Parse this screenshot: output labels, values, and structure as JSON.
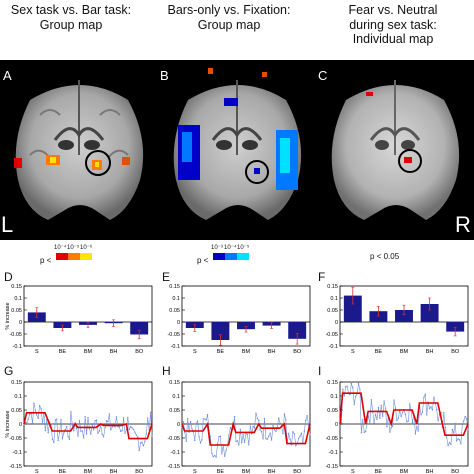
{
  "titles": [
    {
      "id": "A",
      "text1": "Sex task vs. Bar task:",
      "text2": "Group map"
    },
    {
      "id": "B",
      "text1": "Bars-only vs. Fixation:",
      "text2": "Group map"
    },
    {
      "id": "C",
      "text1": "Fear vs. Neutral",
      "text2": "during sex task:",
      "text3": "Individual map"
    }
  ],
  "brain_labels": {
    "A": "A",
    "B": "B",
    "C": "C",
    "left": "L",
    "right": "R"
  },
  "scales": {
    "A": {
      "p": "p <",
      "ticks": [
        "10⁻⁴",
        "10⁻⁵",
        "10⁻⁶"
      ],
      "colors": [
        "#e00000",
        "#ff7a00",
        "#ffe600"
      ]
    },
    "B": {
      "p": "p <",
      "ticks": [
        "10⁻³",
        "10⁻⁴",
        "10⁻⁵"
      ],
      "colors": [
        "#0000c8",
        "#0078ff",
        "#00e0ff"
      ]
    },
    "C": {
      "p": "p < 0.05"
    }
  },
  "colors": {
    "bar": "#1a1a8c",
    "error": "#e03030",
    "model": "#dd0000",
    "raw": "#6f8fd8"
  },
  "chart_data": [
    {
      "id": "D",
      "type": "bar",
      "categories": [
        "S",
        "BE",
        "BM",
        "BH",
        "BO"
      ],
      "values": [
        0.04,
        -0.025,
        -0.012,
        -0.005,
        -0.052
      ],
      "errors": [
        0.02,
        0.012,
        0.012,
        0.014,
        0.018
      ],
      "ylabel": "% increase",
      "ylim": [
        -0.1,
        0.15
      ],
      "yticks": [
        "0.15",
        "0.1",
        "0.05",
        "0",
        "-0.05",
        "-0.1"
      ]
    },
    {
      "id": "E",
      "type": "bar",
      "categories": [
        "S",
        "BE",
        "BM",
        "BH",
        "BO"
      ],
      "values": [
        -0.025,
        -0.075,
        -0.03,
        -0.015,
        -0.07
      ],
      "errors": [
        0.015,
        0.022,
        0.012,
        0.012,
        0.022
      ],
      "ylim": [
        -0.1,
        0.15
      ],
      "yticks": [
        "0.15",
        "0.1",
        "0.05",
        "0",
        "-0.05",
        "-0.1"
      ]
    },
    {
      "id": "F",
      "type": "bar",
      "categories": [
        "S",
        "BE",
        "BM",
        "BH",
        "BO"
      ],
      "values": [
        0.11,
        0.045,
        0.05,
        0.075,
        -0.04
      ],
      "errors": [
        0.035,
        0.02,
        0.02,
        0.025,
        0.018
      ],
      "ylim": [
        -0.1,
        0.15
      ],
      "yticks": [
        "0.15",
        "0.1",
        "0.05",
        "0",
        "-0.05",
        "-0.1"
      ]
    },
    {
      "id": "G",
      "type": "line",
      "categories": [
        "S",
        "BE",
        "BM",
        "BH",
        "BO"
      ],
      "model": [
        0.04,
        -0.025,
        -0.012,
        -0.005,
        -0.052
      ],
      "ylabel": "% increase",
      "ylim": [
        -0.15,
        0.15
      ],
      "yticks": [
        "0.15",
        "0.1",
        "0.05",
        "0",
        "-0.05",
        "-0.1",
        "-0.15"
      ]
    },
    {
      "id": "H",
      "type": "line",
      "categories": [
        "S",
        "BE",
        "BM",
        "BH",
        "BO"
      ],
      "model": [
        -0.025,
        -0.075,
        -0.03,
        -0.015,
        -0.07
      ],
      "ylim": [
        -0.15,
        0.15
      ],
      "yticks": [
        "0.15",
        "0.1",
        "0.05",
        "0",
        "-0.05",
        "-0.1",
        "-0.15"
      ]
    },
    {
      "id": "I",
      "type": "line",
      "categories": [
        "S",
        "BE",
        "BM",
        "BH",
        "BO"
      ],
      "model": [
        0.11,
        0.045,
        0.05,
        0.075,
        -0.04
      ],
      "ylim": [
        -0.15,
        0.15
      ],
      "yticks": [
        "0.15",
        "0.1",
        "0.05",
        "0",
        "-0.05",
        "-0.1",
        "-0.15"
      ]
    }
  ]
}
